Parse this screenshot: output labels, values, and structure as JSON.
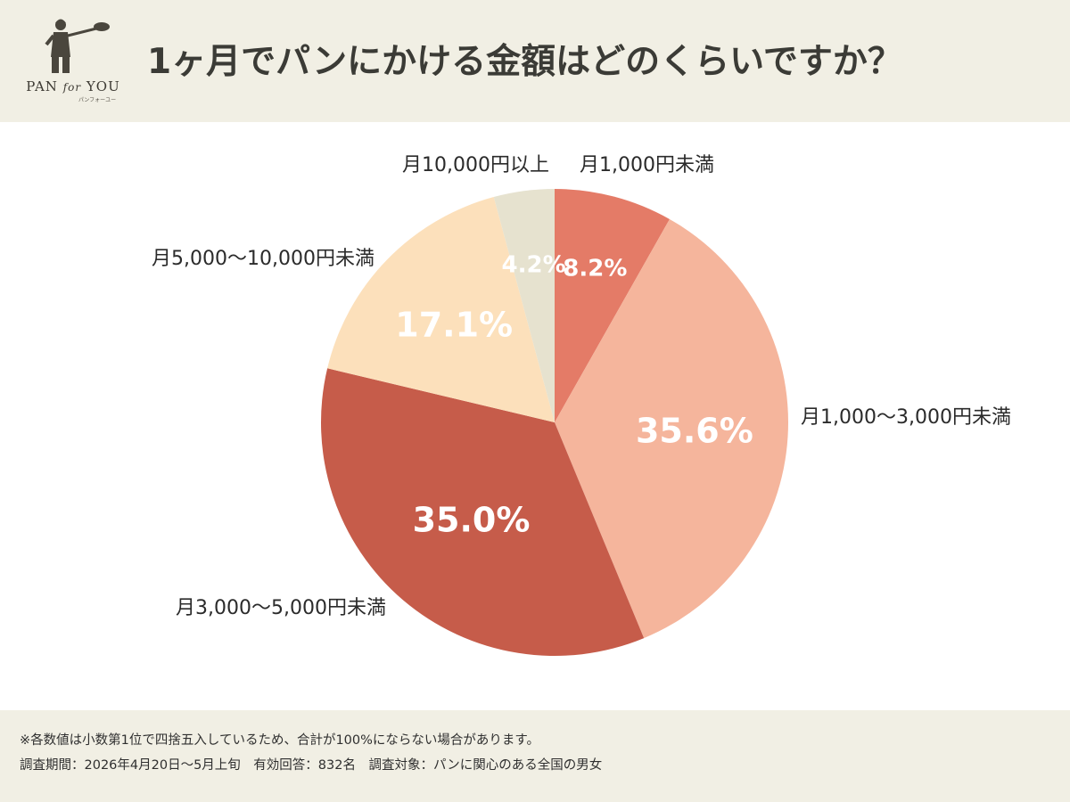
{
  "header": {
    "logo_text": "PAN",
    "logo_for": "for",
    "logo_you": "YOU",
    "logo_sub": "パンフォーユー",
    "title": "1ヶ月でパンにかける金額はどのくらいですか？"
  },
  "chart_data": {
    "type": "pie",
    "slices": [
      {
        "category": "月1,000円未満",
        "value": 8.2,
        "label": "8.2%",
        "color": "#e47b67"
      },
      {
        "category": "月1,000〜3,000円未満",
        "value": 35.6,
        "label": "35.6%",
        "color": "#f5b59c"
      },
      {
        "category": "月3,000〜5,000円未満",
        "value": 35.0,
        "label": "35.0%",
        "color": "#c65c4a"
      },
      {
        "category": "月5,000〜10,000円未満",
        "value": 17.1,
        "label": "17.1%",
        "color": "#fce0bb"
      },
      {
        "category": "月10,000円以上",
        "value": 4.2,
        "label": "4.2%",
        "color": "#e6e2cf"
      }
    ]
  },
  "footer": {
    "note1": "※各数値は小数第1位で四捨五入しているため、合計が100%にならない場合があります。",
    "note2": "調査期間：2026年4月20日〜5月上旬　有効回答：832名　調査対象：パンに関心のある全国の男女"
  }
}
